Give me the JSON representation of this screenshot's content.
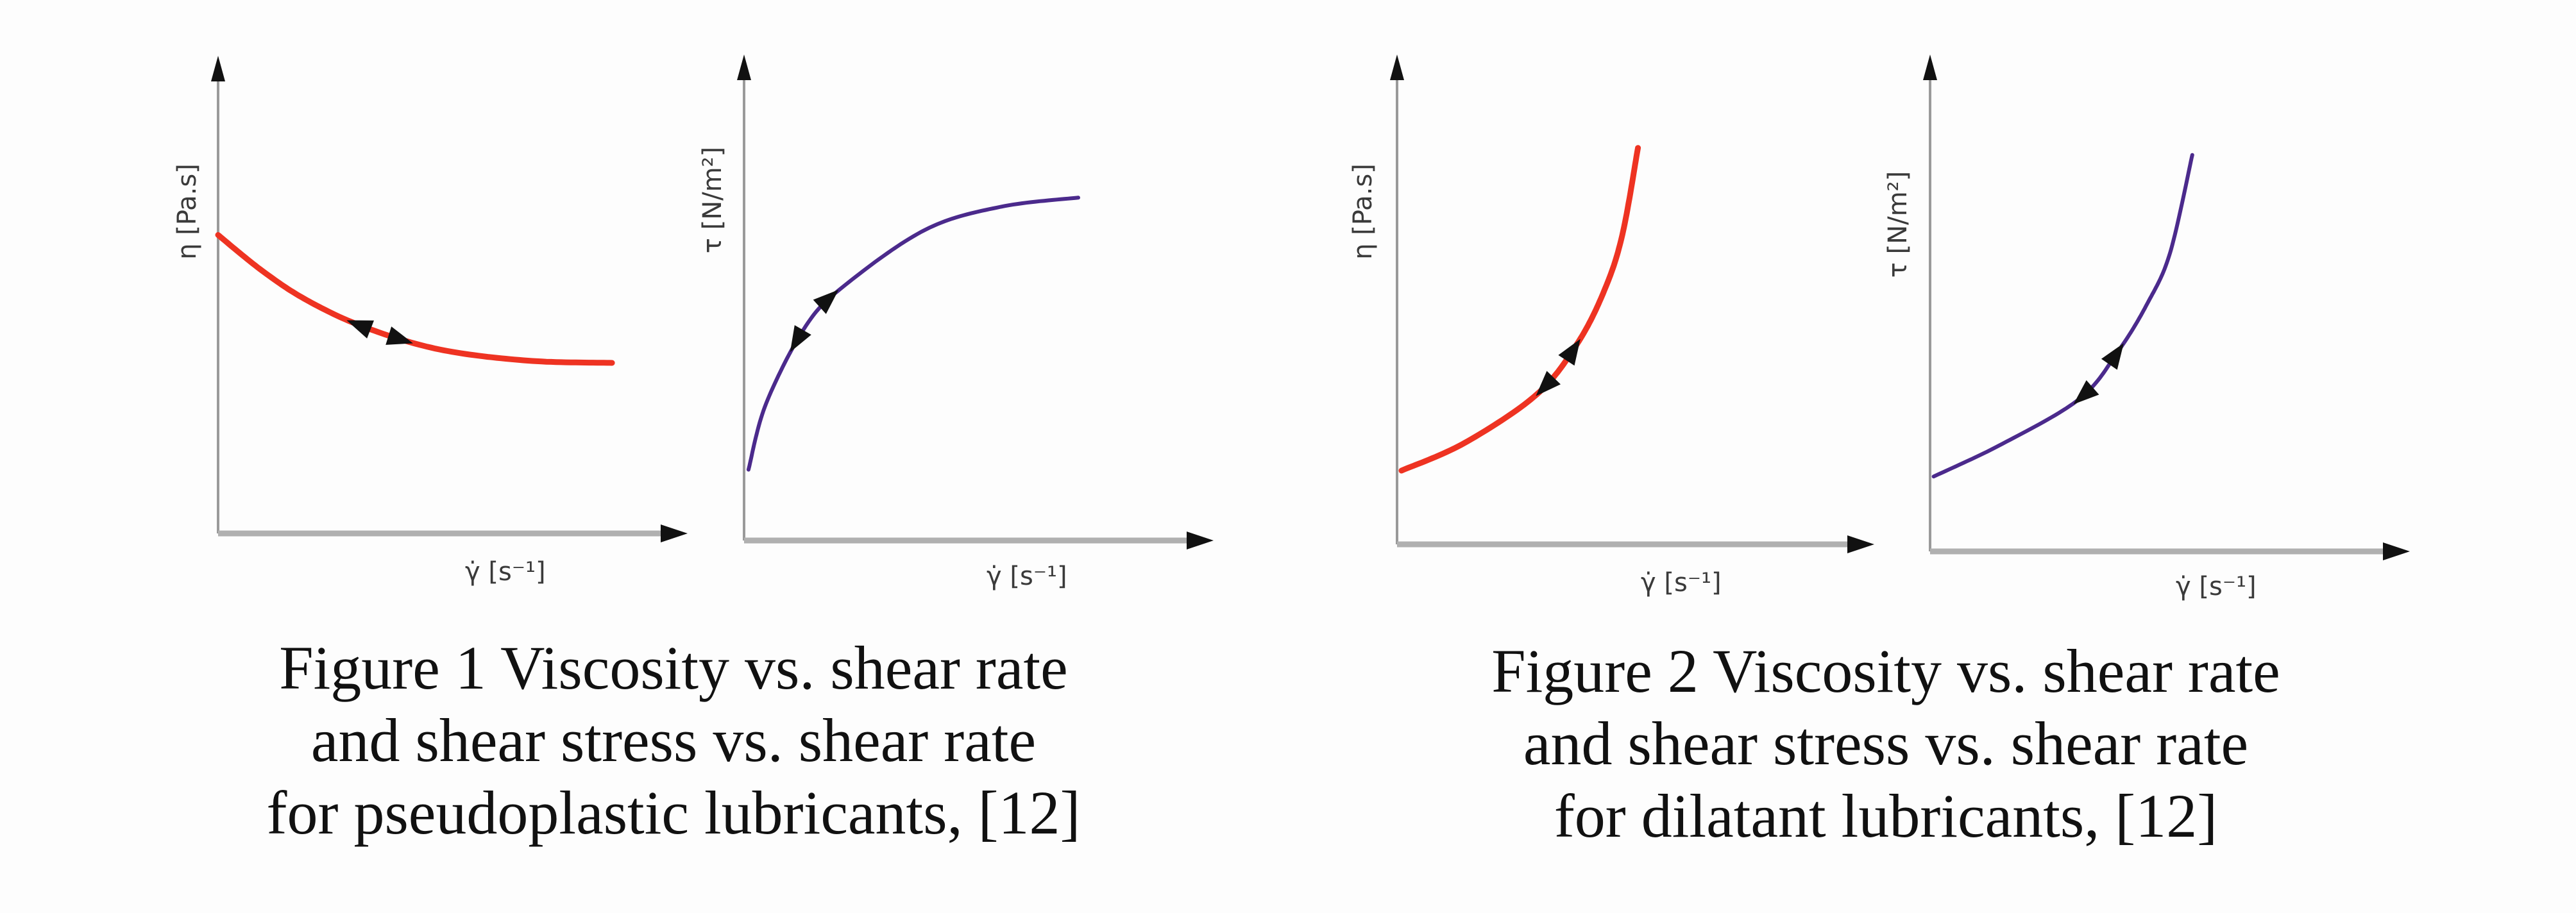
{
  "colors": {
    "viscosity_curve": "#ee3322",
    "stress_curve": "#4b2a8c",
    "axis": "#9a9a9a",
    "arrow": "#111111"
  },
  "chart_data": [
    {
      "type": "line",
      "xlabel": "γ̇  [s⁻¹]",
      "ylabel": "η [Pa.s]",
      "xlim": [
        0,
        10
      ],
      "ylim": [
        0,
        10
      ],
      "grid": false,
      "series": [
        {
          "color": "#ee3322",
          "points": [
            [
              0,
              6.65
            ],
            [
              1,
              5.85
            ],
            [
              2,
              5.2
            ],
            [
              3.3,
              4.6
            ],
            [
              5,
              4.1
            ],
            [
              7,
              3.85
            ],
            [
              8.9,
              3.8
            ]
          ],
          "arrows_at_x": [
            3.2,
            4.1
          ]
        }
      ]
    },
    {
      "type": "line",
      "xlabel": "γ̇  [s⁻¹]",
      "ylabel": "τ [N/m²]",
      "xlim": [
        0,
        10
      ],
      "ylim": [
        0,
        10
      ],
      "grid": false,
      "series": [
        {
          "color": "#4b2a8c",
          "points": [
            [
              0.1,
              1.55
            ],
            [
              0.5,
              3.0
            ],
            [
              1.4,
              4.7
            ],
            [
              2.3,
              5.6
            ],
            [
              4.1,
              6.8
            ],
            [
              5.8,
              7.3
            ],
            [
              7.55,
              7.5
            ]
          ],
          "arrows_at_x": [
            1.2,
            1.9
          ]
        }
      ]
    },
    {
      "type": "line",
      "xlabel": "γ̇  [s⁻¹]",
      "ylabel": "η [Pa.s]",
      "xlim": [
        0,
        10
      ],
      "ylim": [
        0,
        10
      ],
      "grid": false,
      "series": [
        {
          "color": "#ee3322",
          "points": [
            [
              0.1,
              1.6
            ],
            [
              1.5,
              2.2
            ],
            [
              3.1,
              3.25
            ],
            [
              4.0,
              4.35
            ],
            [
              4.6,
              5.5
            ],
            [
              5.0,
              6.7
            ],
            [
              5.35,
              8.6
            ]
          ],
          "arrows_at_x": [
            3.3,
            3.9
          ]
        }
      ]
    },
    {
      "type": "line",
      "xlabel": "γ̇  [s⁻¹]",
      "ylabel": "τ [N/m²]",
      "xlim": [
        0,
        10
      ],
      "ylim": [
        0,
        10
      ],
      "grid": false,
      "series": [
        {
          "color": "#4b2a8c",
          "points": [
            [
              0.08,
              1.6
            ],
            [
              1.6,
              2.3
            ],
            [
              3.3,
              3.26
            ],
            [
              4.15,
              4.27
            ],
            [
              4.8,
              5.3
            ],
            [
              5.3,
              6.38
            ],
            [
              5.79,
              8.47
            ]
          ],
          "arrows_at_x": [
            3.4,
            4.1
          ]
        }
      ]
    }
  ],
  "captions": [
    {
      "lines": [
        "Figure 1 Viscosity vs. shear rate",
        "and shear stress vs. shear rate",
        "for pseudoplastic lubricants, [12]"
      ]
    },
    {
      "lines": [
        "Figure 2 Viscosity vs. shear rate",
        "and shear stress vs. shear rate",
        "for dilatant lubricants, [12]"
      ]
    }
  ]
}
